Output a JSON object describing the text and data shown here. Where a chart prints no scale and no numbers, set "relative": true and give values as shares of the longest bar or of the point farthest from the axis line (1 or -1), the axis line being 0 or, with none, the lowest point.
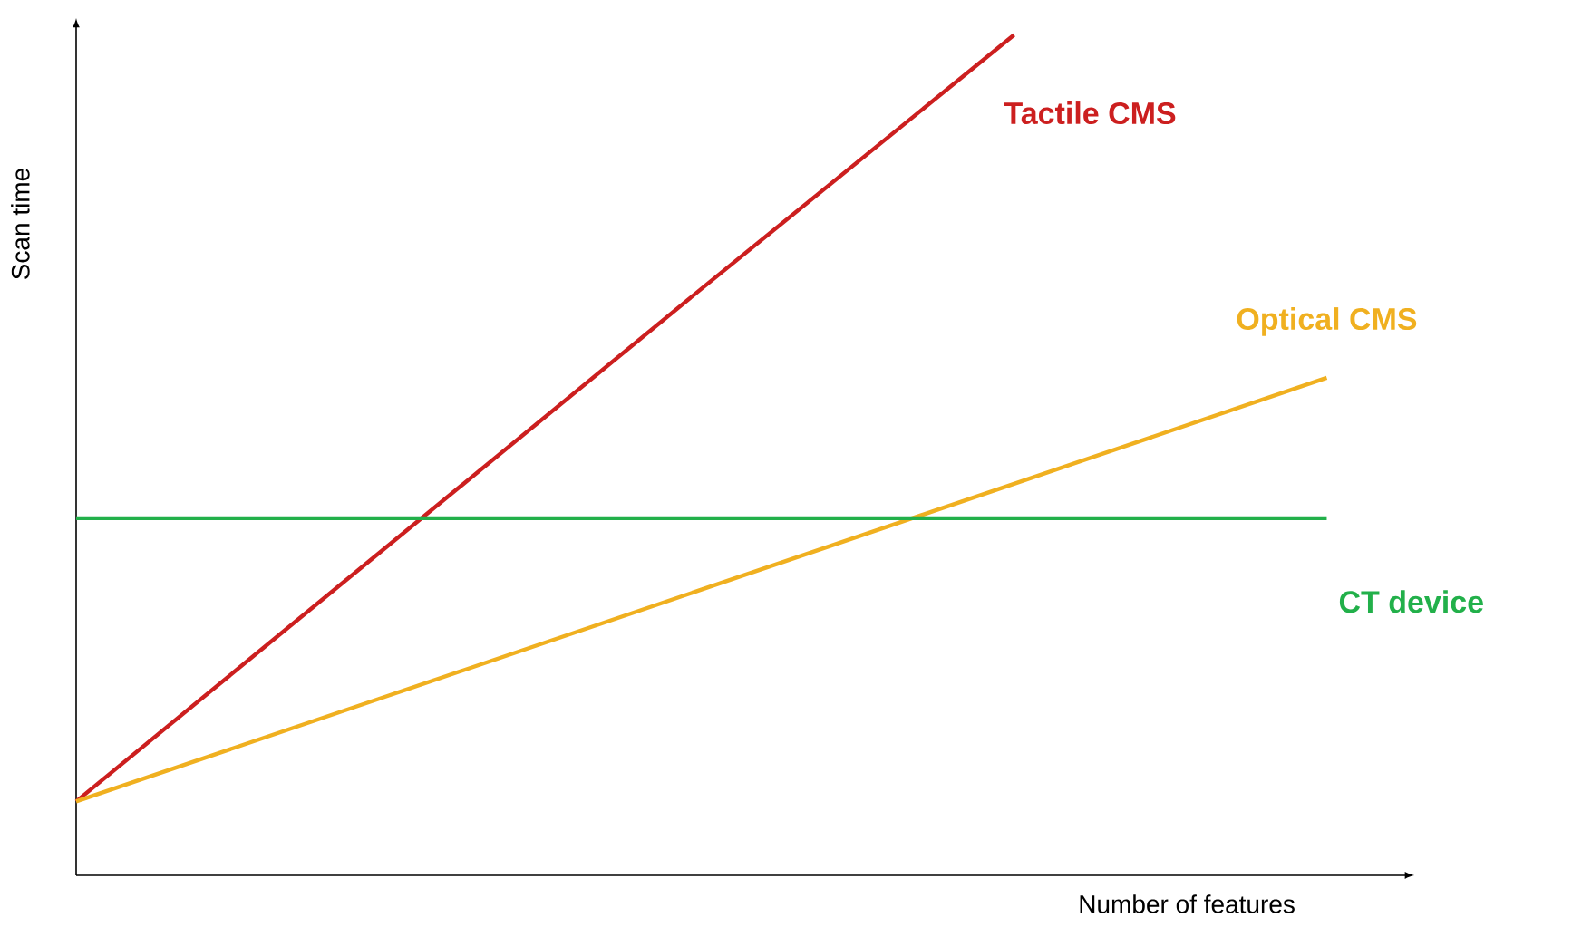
{
  "chart_data": {
    "type": "line",
    "relative": true,
    "xlabel": "Number of features",
    "ylabel": "Scan time",
    "categories": [
      null,
      null,
      null,
      null,
      null
    ],
    "marker": "none",
    "line_style": "solid",
    "series": [
      {
        "name": "Tactile CMS",
        "color": "#cc1f1f",
        "values": [
          0.088,
          0.393,
          0.698,
          1.0,
          null
        ]
      },
      {
        "name": "Optical CMS",
        "color": "#f0b020",
        "values": [
          0.088,
          0.214,
          0.34,
          0.466,
          0.592
        ]
      },
      {
        "name": "CT device",
        "color": "#22b04a",
        "values": [
          0.425,
          0.425,
          0.425,
          0.425,
          0.425
        ]
      }
    ]
  }
}
